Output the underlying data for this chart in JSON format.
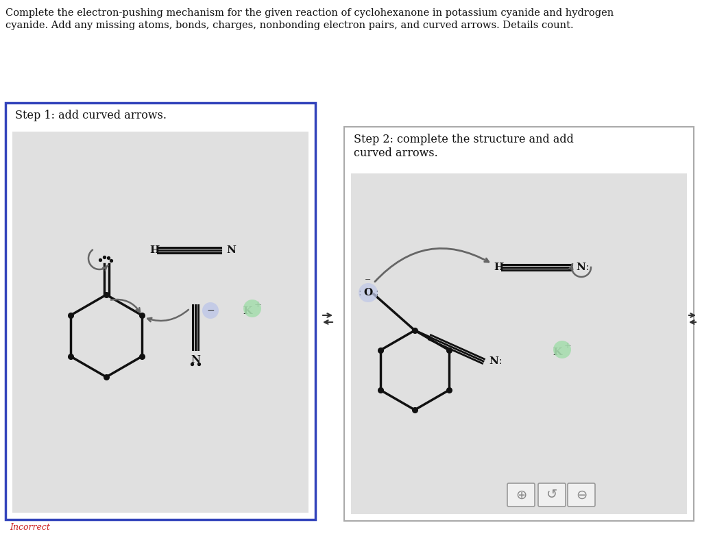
{
  "title_line1": "Complete the electron-pushing mechanism for the given reaction of cyclohexanone in potassium cyanide and hydrogen",
  "title_line2": "cyanide. Add any missing atoms, bonds, charges, nonbonding electron pairs, and curved arrows. Details count.",
  "step1_label": "Step 1: add curved arrows.",
  "step2_label": "Step 2: complete the structure and add\ncurved arrows.",
  "incorrect_label": "Incorrect",
  "border_color_step1": "#3344bb",
  "border_color_step2": "#aaaaaa",
  "inner_bg": "#e0e0e0",
  "arrow_color": "#666666",
  "bond_color": "#111111",
  "highlight_minus": "#c0c8e8",
  "highlight_plus": "#a8ddb0"
}
